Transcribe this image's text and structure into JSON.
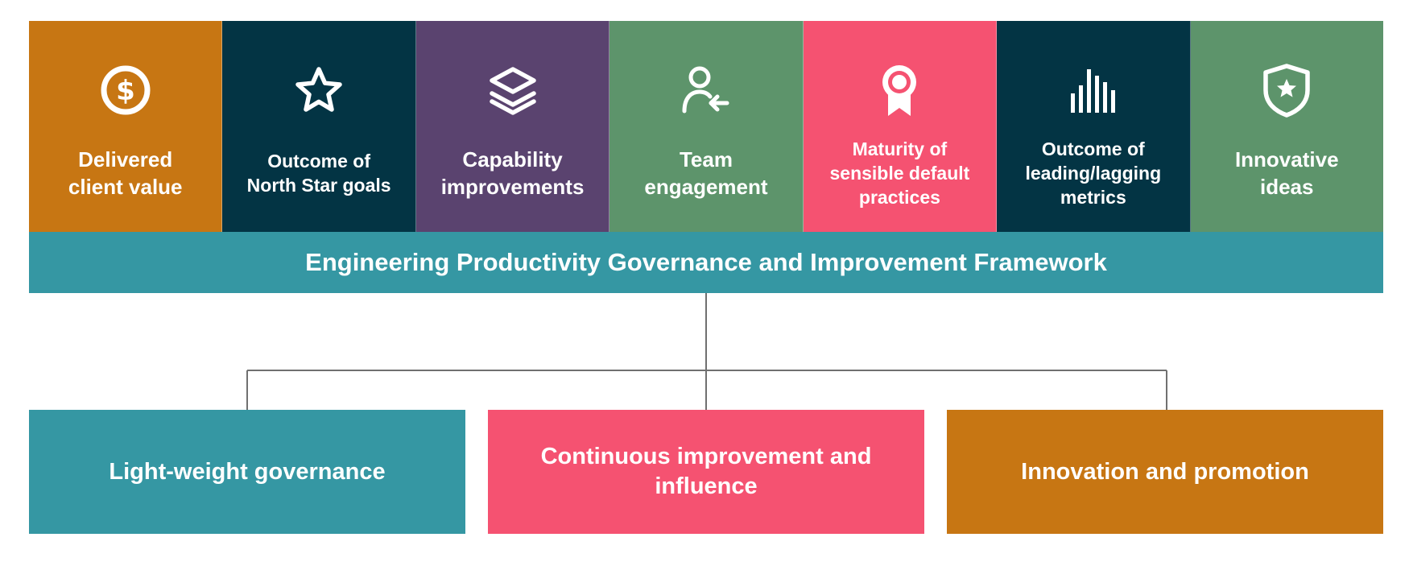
{
  "colors": {
    "orange": "#c77613",
    "navy": "#033444",
    "purple": "#5a436f",
    "green": "#5d946b",
    "pink": "#f55271",
    "teal": "#3597a3",
    "connector": "#707070"
  },
  "tiles": [
    {
      "icon": "dollar-circle-icon",
      "label": "Delivered\nclient value"
    },
    {
      "icon": "star-icon",
      "label": "Outcome of\nNorth Star goals"
    },
    {
      "icon": "layers-icon",
      "label": "Capability\nimprovements"
    },
    {
      "icon": "user-add-icon",
      "label": "Team\nengagement"
    },
    {
      "icon": "award-ribbon-icon",
      "label": "Maturity of\nsensible default\npractices"
    },
    {
      "icon": "bar-metrics-icon",
      "label": "Outcome of\nleading/lagging\nmetrics"
    },
    {
      "icon": "shield-star-icon",
      "label": "Innovative\nideas"
    }
  ],
  "framework": {
    "title": "Engineering Productivity Governance and Improvement Framework"
  },
  "pillars": [
    {
      "label": "Light-weight governance"
    },
    {
      "label": "Continuous improvement and\ninfluence"
    },
    {
      "label": "Innovation and promotion"
    }
  ]
}
